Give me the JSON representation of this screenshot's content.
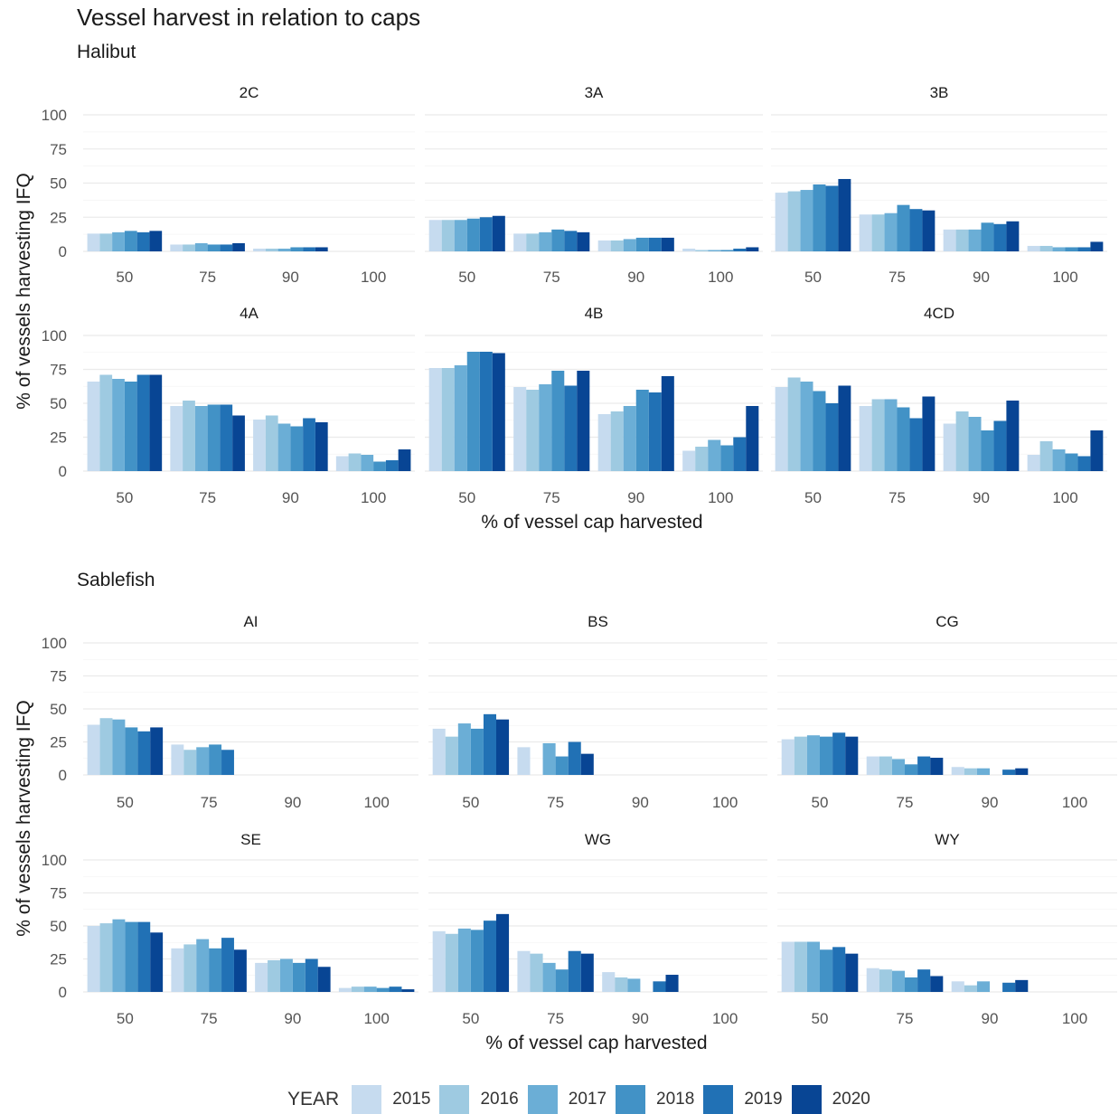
{
  "title": "Vessel harvest in relation to caps",
  "years": [
    "2015",
    "2016",
    "2017",
    "2018",
    "2019",
    "2020"
  ],
  "colors": [
    "#c6dbef",
    "#9ecae1",
    "#6baed6",
    "#4292c6",
    "#2171b5",
    "#084594"
  ],
  "legend": {
    "title": "YEAR"
  },
  "chart_data": [
    {
      "type": "bar",
      "title": "Halibut",
      "xlabel": "% of vessel cap harvested",
      "ylabel": "% of vessels harvesting IFQ",
      "ylim": [
        0,
        100
      ],
      "yticks": [
        "0",
        "25",
        "50",
        "75",
        "100"
      ],
      "categories": [
        "50",
        "75",
        "90",
        "100"
      ],
      "grid": true,
      "legend": "bottom",
      "panels": [
        {
          "name": "2C",
          "series": [
            {
              "name": "2015",
              "values": [
                13,
                5,
                2,
                0
              ]
            },
            {
              "name": "2016",
              "values": [
                13,
                5,
                2,
                0
              ]
            },
            {
              "name": "2017",
              "values": [
                14,
                6,
                2,
                0
              ]
            },
            {
              "name": "2018",
              "values": [
                15,
                5,
                3,
                0
              ]
            },
            {
              "name": "2019",
              "values": [
                14,
                5,
                3,
                0
              ]
            },
            {
              "name": "2020",
              "values": [
                15,
                6,
                3,
                0
              ]
            }
          ]
        },
        {
          "name": "3A",
          "series": [
            {
              "name": "2015",
              "values": [
                23,
                13,
                8,
                2
              ]
            },
            {
              "name": "2016",
              "values": [
                23,
                13,
                8,
                1
              ]
            },
            {
              "name": "2017",
              "values": [
                23,
                14,
                9,
                1
              ]
            },
            {
              "name": "2018",
              "values": [
                24,
                16,
                10,
                1
              ]
            },
            {
              "name": "2019",
              "values": [
                25,
                15,
                10,
                2
              ]
            },
            {
              "name": "2020",
              "values": [
                26,
                14,
                10,
                3
              ]
            }
          ]
        },
        {
          "name": "3B",
          "series": [
            {
              "name": "2015",
              "values": [
                43,
                27,
                16,
                4
              ]
            },
            {
              "name": "2016",
              "values": [
                44,
                27,
                16,
                4
              ]
            },
            {
              "name": "2017",
              "values": [
                45,
                28,
                16,
                3
              ]
            },
            {
              "name": "2018",
              "values": [
                49,
                34,
                21,
                3
              ]
            },
            {
              "name": "2019",
              "values": [
                48,
                31,
                20,
                3
              ]
            },
            {
              "name": "2020",
              "values": [
                53,
                30,
                22,
                7
              ]
            }
          ]
        },
        {
          "name": "4A",
          "series": [
            {
              "name": "2015",
              "values": [
                66,
                48,
                38,
                11
              ]
            },
            {
              "name": "2016",
              "values": [
                71,
                52,
                41,
                13
              ]
            },
            {
              "name": "2017",
              "values": [
                68,
                48,
                35,
                12
              ]
            },
            {
              "name": "2018",
              "values": [
                66,
                49,
                33,
                7
              ]
            },
            {
              "name": "2019",
              "values": [
                71,
                49,
                39,
                8
              ]
            },
            {
              "name": "2020",
              "values": [
                71,
                41,
                36,
                16
              ]
            }
          ]
        },
        {
          "name": "4B",
          "series": [
            {
              "name": "2015",
              "values": [
                76,
                62,
                42,
                15
              ]
            },
            {
              "name": "2016",
              "values": [
                76,
                60,
                44,
                18
              ]
            },
            {
              "name": "2017",
              "values": [
                78,
                64,
                48,
                23
              ]
            },
            {
              "name": "2018",
              "values": [
                88,
                74,
                60,
                19
              ]
            },
            {
              "name": "2019",
              "values": [
                88,
                63,
                58,
                25
              ]
            },
            {
              "name": "2020",
              "values": [
                87,
                74,
                70,
                48
              ]
            }
          ]
        },
        {
          "name": "4CD",
          "series": [
            {
              "name": "2015",
              "values": [
                62,
                48,
                35,
                12
              ]
            },
            {
              "name": "2016",
              "values": [
                69,
                53,
                44,
                22
              ]
            },
            {
              "name": "2017",
              "values": [
                66,
                53,
                40,
                16
              ]
            },
            {
              "name": "2018",
              "values": [
                59,
                47,
                30,
                13
              ]
            },
            {
              "name": "2019",
              "values": [
                50,
                39,
                37,
                11
              ]
            },
            {
              "name": "2020",
              "values": [
                63,
                55,
                52,
                30
              ]
            }
          ]
        }
      ]
    },
    {
      "type": "bar",
      "title": "Sablefish",
      "xlabel": "% of vessel cap harvested",
      "ylabel": "% of vessels harvesting IFQ",
      "ylim": [
        0,
        100
      ],
      "yticks": [
        "0",
        "25",
        "50",
        "75",
        "100"
      ],
      "categories": [
        "50",
        "75",
        "90",
        "100"
      ],
      "grid": true,
      "legend": "bottom",
      "panels": [
        {
          "name": "AI",
          "series": [
            {
              "name": "2015",
              "values": [
                38,
                23,
                0,
                0
              ]
            },
            {
              "name": "2016",
              "values": [
                43,
                19,
                0,
                0
              ]
            },
            {
              "name": "2017",
              "values": [
                42,
                21,
                0,
                0
              ]
            },
            {
              "name": "2018",
              "values": [
                36,
                23,
                0,
                0
              ]
            },
            {
              "name": "2019",
              "values": [
                33,
                19,
                0,
                0
              ]
            },
            {
              "name": "2020",
              "values": [
                36,
                0,
                0,
                0
              ]
            }
          ]
        },
        {
          "name": "BS",
          "series": [
            {
              "name": "2015",
              "values": [
                35,
                21,
                0,
                0
              ]
            },
            {
              "name": "2016",
              "values": [
                29,
                0,
                0,
                0
              ]
            },
            {
              "name": "2017",
              "values": [
                39,
                24,
                0,
                0
              ]
            },
            {
              "name": "2018",
              "values": [
                35,
                14,
                0,
                0
              ]
            },
            {
              "name": "2019",
              "values": [
                46,
                25,
                0,
                0
              ]
            },
            {
              "name": "2020",
              "values": [
                42,
                16,
                0,
                0
              ]
            }
          ]
        },
        {
          "name": "CG",
          "series": [
            {
              "name": "2015",
              "values": [
                27,
                14,
                6,
                0
              ]
            },
            {
              "name": "2016",
              "values": [
                29,
                14,
                5,
                0
              ]
            },
            {
              "name": "2017",
              "values": [
                30,
                12,
                5,
                0
              ]
            },
            {
              "name": "2018",
              "values": [
                29,
                8,
                0,
                0
              ]
            },
            {
              "name": "2019",
              "values": [
                32,
                14,
                4,
                0
              ]
            },
            {
              "name": "2020",
              "values": [
                29,
                13,
                5,
                0
              ]
            }
          ]
        },
        {
          "name": "SE",
          "series": [
            {
              "name": "2015",
              "values": [
                50,
                33,
                22,
                3
              ]
            },
            {
              "name": "2016",
              "values": [
                52,
                36,
                24,
                4
              ]
            },
            {
              "name": "2017",
              "values": [
                55,
                40,
                25,
                4
              ]
            },
            {
              "name": "2018",
              "values": [
                53,
                33,
                22,
                3
              ]
            },
            {
              "name": "2019",
              "values": [
                53,
                41,
                25,
                4
              ]
            },
            {
              "name": "2020",
              "values": [
                45,
                32,
                19,
                2
              ]
            }
          ]
        },
        {
          "name": "WG",
          "series": [
            {
              "name": "2015",
              "values": [
                46,
                31,
                15,
                0
              ]
            },
            {
              "name": "2016",
              "values": [
                44,
                29,
                11,
                0
              ]
            },
            {
              "name": "2017",
              "values": [
                48,
                22,
                10,
                0
              ]
            },
            {
              "name": "2018",
              "values": [
                47,
                17,
                0,
                0
              ]
            },
            {
              "name": "2019",
              "values": [
                54,
                31,
                8,
                0
              ]
            },
            {
              "name": "2020",
              "values": [
                59,
                29,
                13,
                0
              ]
            }
          ]
        },
        {
          "name": "WY",
          "series": [
            {
              "name": "2015",
              "values": [
                38,
                18,
                8,
                0
              ]
            },
            {
              "name": "2016",
              "values": [
                38,
                17,
                5,
                0
              ]
            },
            {
              "name": "2017",
              "values": [
                38,
                16,
                8,
                0
              ]
            },
            {
              "name": "2018",
              "values": [
                32,
                11,
                0,
                0
              ]
            },
            {
              "name": "2019",
              "values": [
                34,
                17,
                7,
                0
              ]
            },
            {
              "name": "2020",
              "values": [
                29,
                12,
                9,
                0
              ]
            }
          ]
        }
      ]
    }
  ]
}
